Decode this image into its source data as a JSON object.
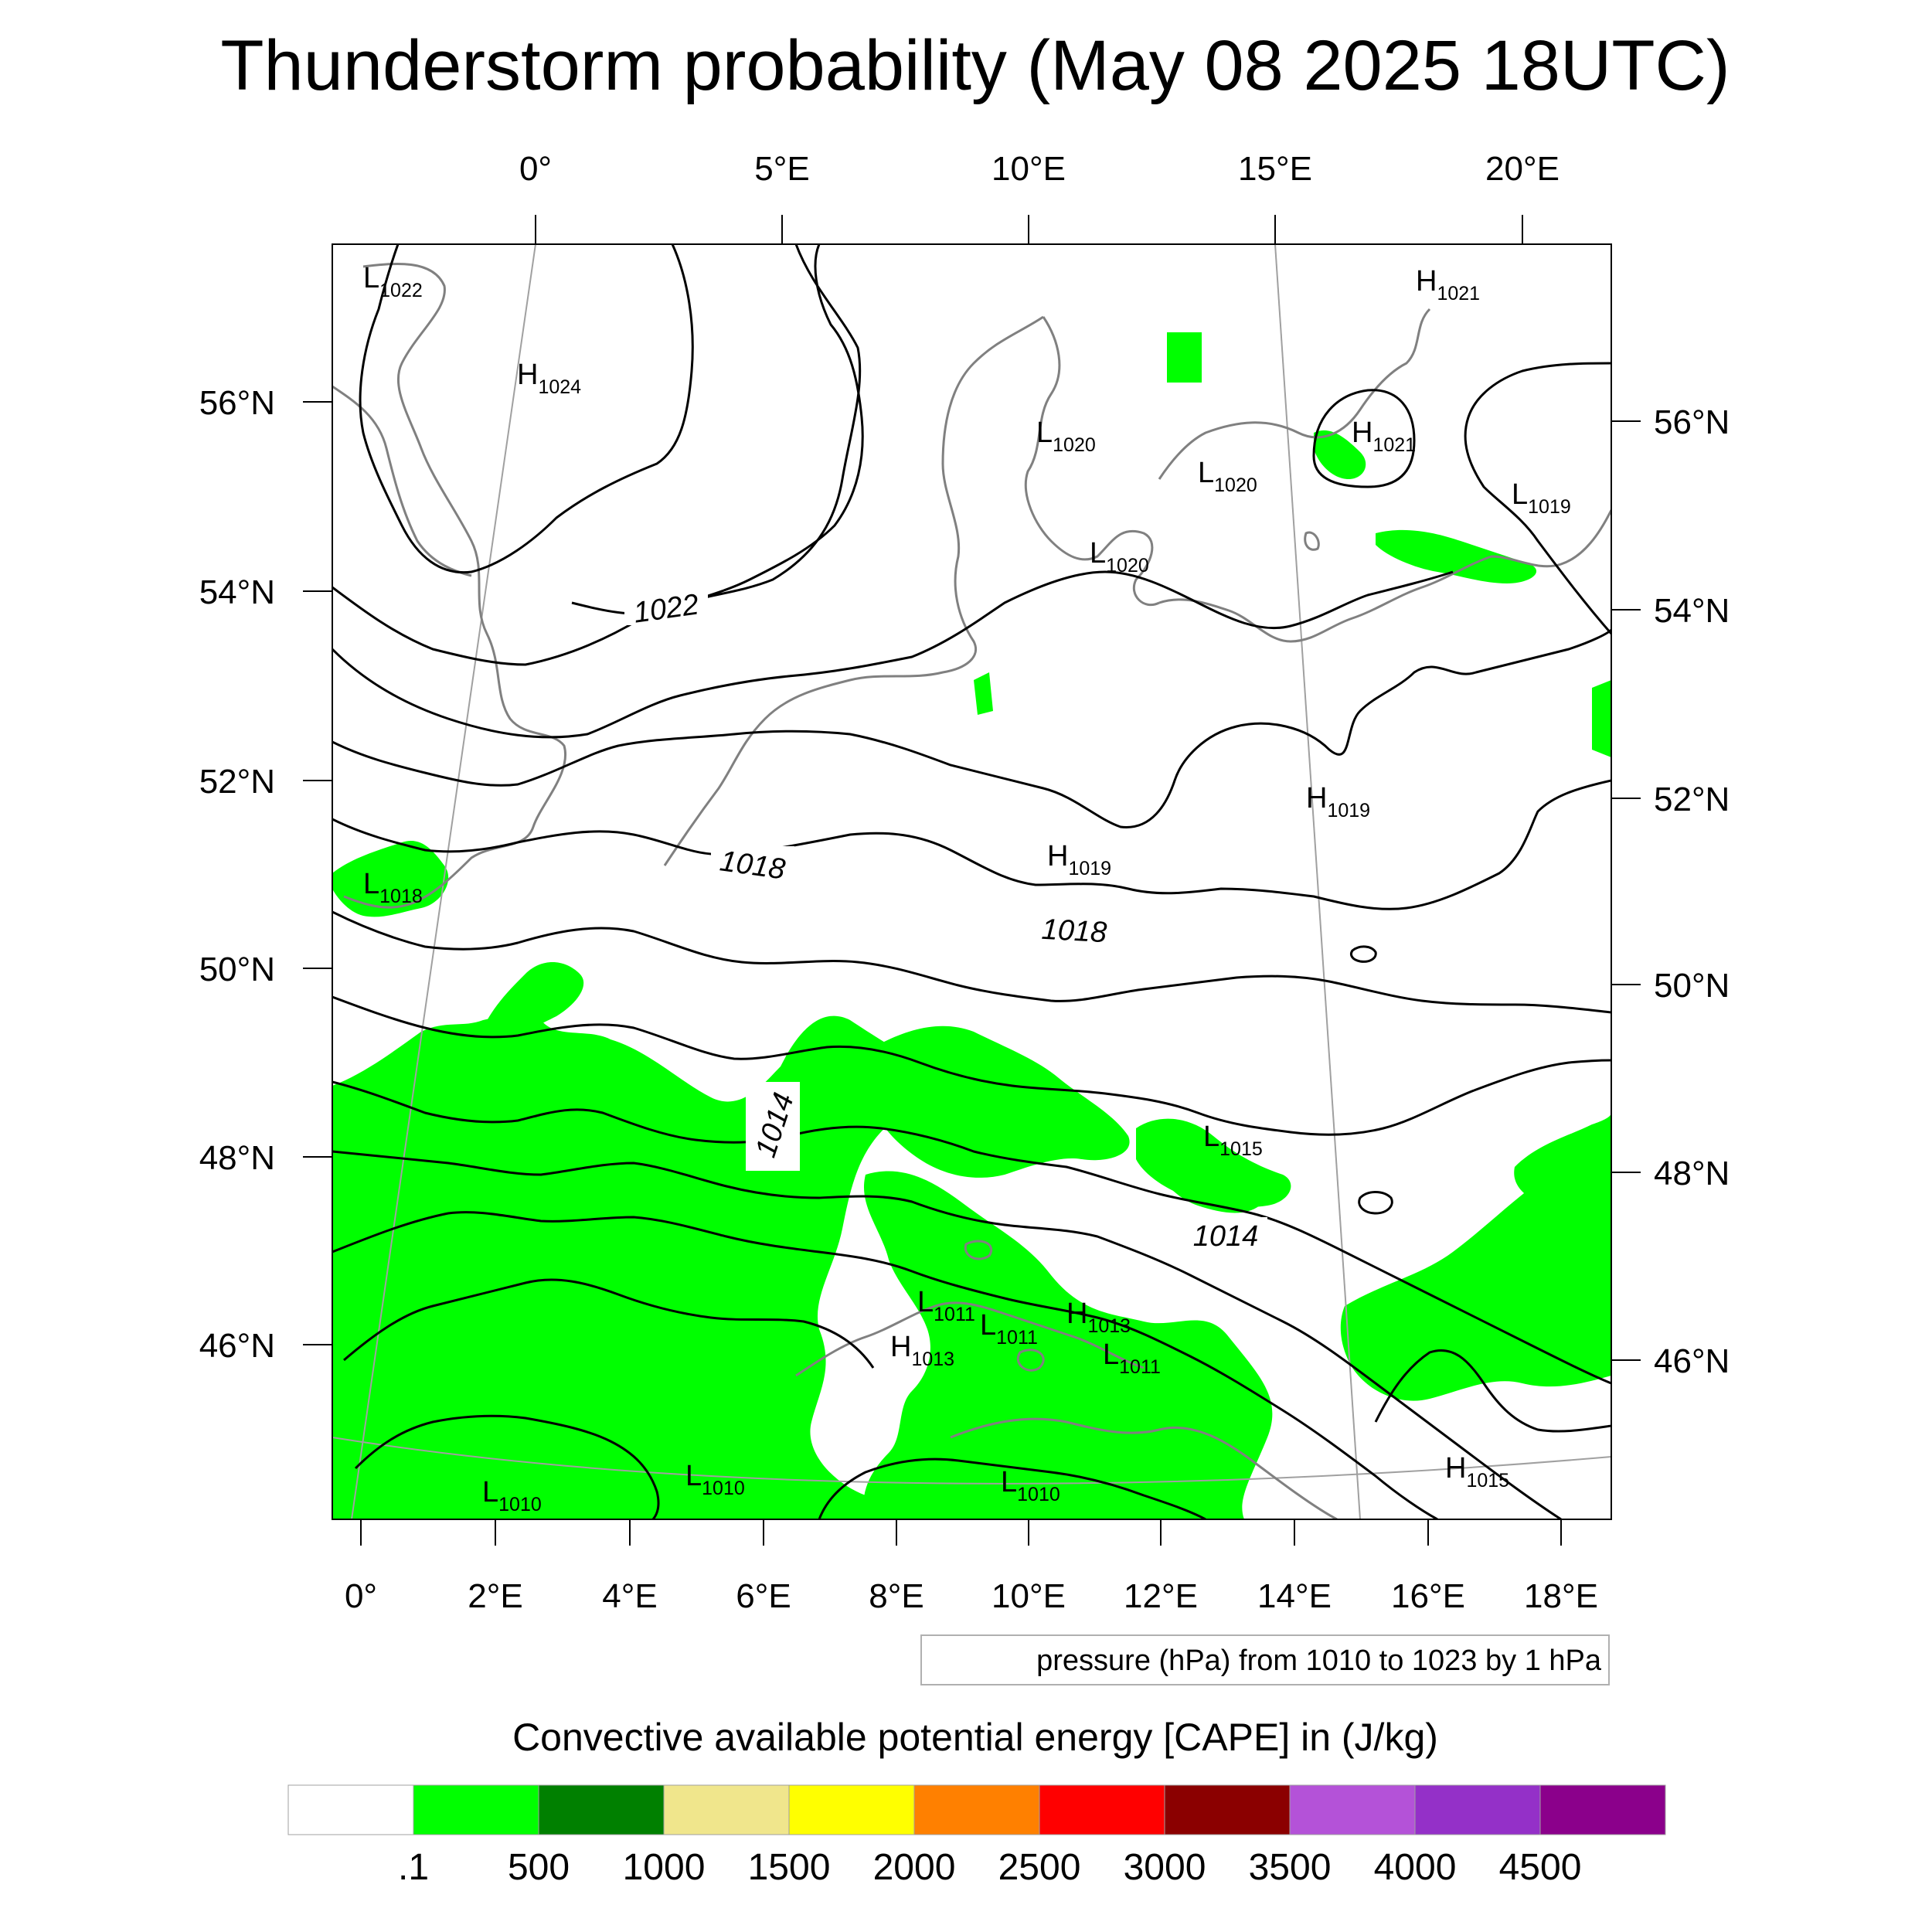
{
  "title": "Thunderstorm probability (May 08 2025 18UTC)",
  "top_lon_ticks": [
    "0°",
    "5°E",
    "10°E",
    "15°E",
    "20°E"
  ],
  "bottom_lon_ticks": [
    "0°",
    "2°E",
    "4°E",
    "6°E",
    "8°E",
    "10°E",
    "12°E",
    "14°E",
    "16°E",
    "18°E"
  ],
  "left_lat_ticks": [
    "56°N",
    "54°N",
    "52°N",
    "50°N",
    "48°N",
    "46°N"
  ],
  "right_lat_ticks": [
    "56°N",
    "54°N",
    "52°N",
    "50°N",
    "48°N",
    "46°N"
  ],
  "pressure_centers": [
    {
      "type": "L",
      "value": "1022"
    },
    {
      "type": "H",
      "value": "1024"
    },
    {
      "type": "L",
      "value": "1020"
    },
    {
      "type": "L",
      "value": "1020"
    },
    {
      "type": "L",
      "value": "1020"
    },
    {
      "type": "H",
      "value": "1021"
    },
    {
      "type": "H",
      "value": "1021"
    },
    {
      "type": "L",
      "value": "1019"
    },
    {
      "type": "L",
      "value": "1018"
    },
    {
      "type": "H",
      "value": "1019"
    },
    {
      "type": "H",
      "value": "1019"
    },
    {
      "type": "L",
      "value": "1015"
    },
    {
      "type": "L",
      "value": "1011"
    },
    {
      "type": "L",
      "value": "1011"
    },
    {
      "type": "H",
      "value": "1013"
    },
    {
      "type": "H",
      "value": "1013"
    },
    {
      "type": "L",
      "value": "1011"
    },
    {
      "type": "L",
      "value": "1010"
    },
    {
      "type": "L",
      "value": "1010"
    },
    {
      "type": "L",
      "value": "1010"
    },
    {
      "type": "H",
      "value": "1015"
    }
  ],
  "contour_labels": [
    "1022",
    "1018",
    "1018",
    "1014",
    "1014"
  ],
  "pressure_info": "pressure (hPa) from 1010 to 1023 by 1 hPa",
  "legend": {
    "title": "Convective available potential energy [CAPE] in (J/kg)",
    "colors": [
      "#ffffff",
      "#00ff00",
      "#008000",
      "#f0e68c",
      "#ffff00",
      "#ff8000",
      "#ff0000",
      "#8b0000",
      "#b452d8",
      "#9430c8",
      "#8b008b"
    ],
    "labels": [
      ".1",
      "500",
      "1000",
      "1500",
      "2000",
      "2500",
      "3000",
      "3500",
      "4000",
      "4500"
    ]
  },
  "colors": {
    "cape_green": "#00ff00",
    "coast": "#808080",
    "isobar": "#000000",
    "grid": "#a0a0a0"
  }
}
